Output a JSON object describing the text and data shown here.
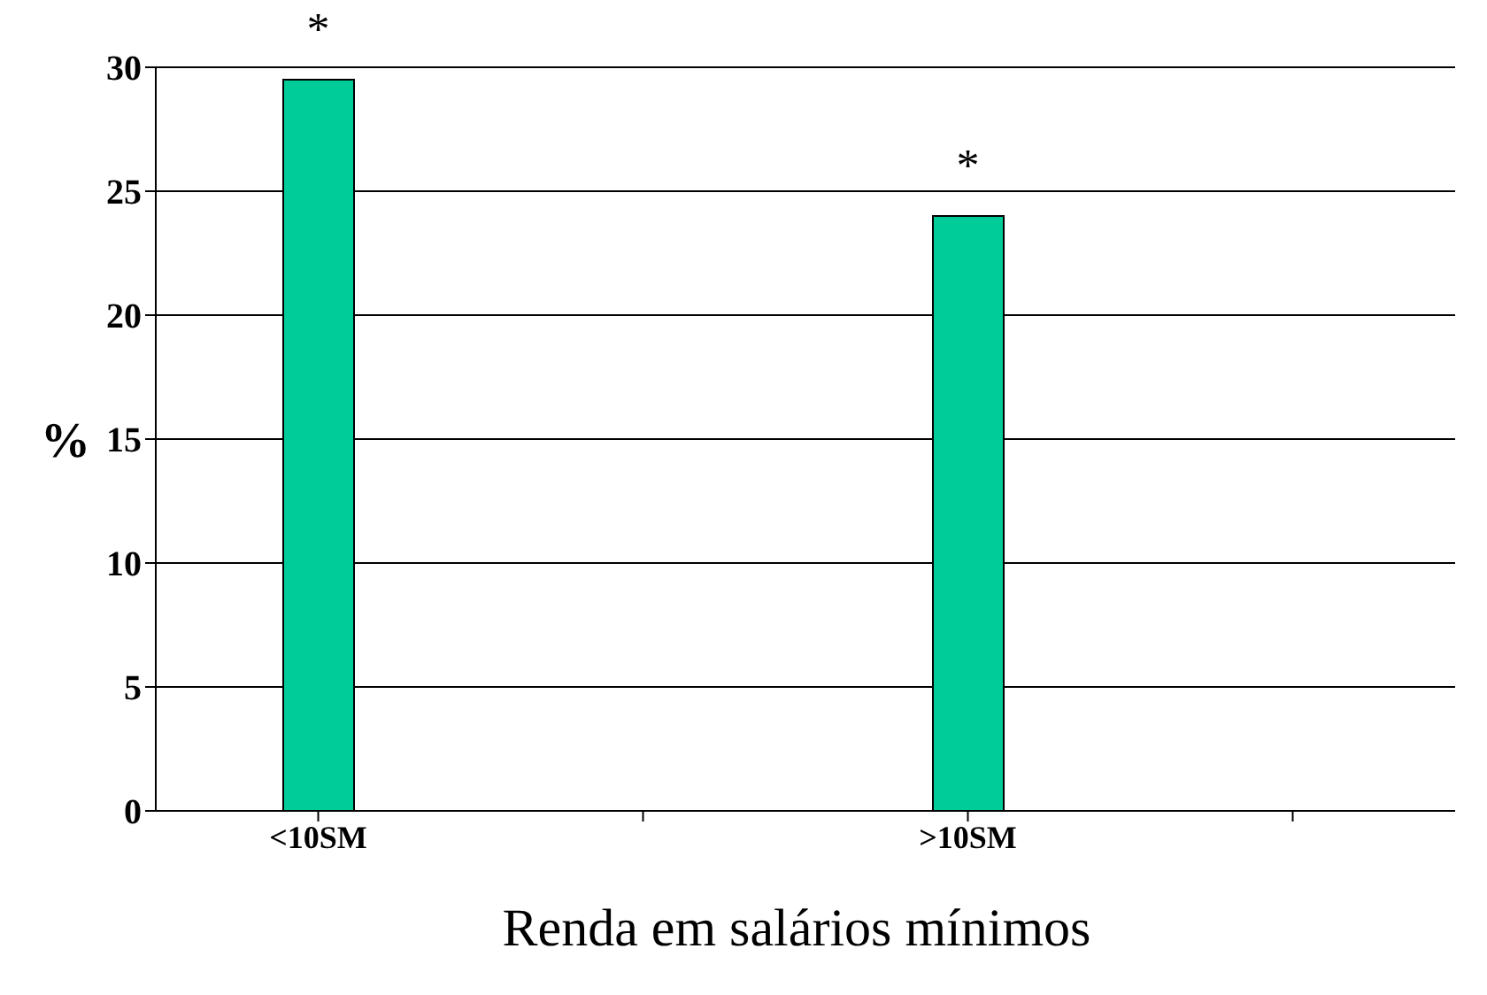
{
  "chart_data": {
    "type": "bar",
    "categories": [
      "<10SM",
      null,
      ">10SM",
      null
    ],
    "values": [
      29.5,
      null,
      24,
      null
    ],
    "color": "#00cc99",
    "ylim": [
      0,
      30
    ],
    "yticks": [
      0,
      5,
      10,
      15,
      20,
      25,
      30
    ],
    "grid": "y",
    "xlabel": "Renda em salários mínimos",
    "ylabel": "%",
    "annotations": [
      {
        "text": "*",
        "x": "<10SM",
        "y": 29.5
      },
      {
        "text": "*",
        "x": ">10SM",
        "y": 24
      }
    ]
  }
}
